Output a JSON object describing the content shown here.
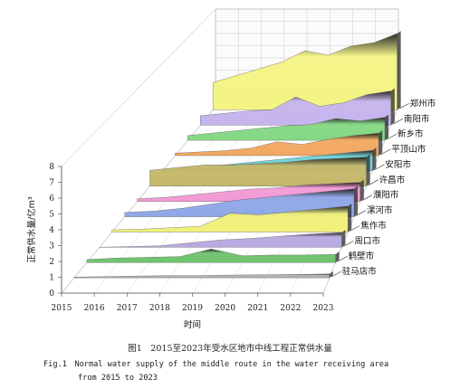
{
  "chart_data": {
    "type": "area",
    "layout": "3d-waterfall",
    "title": "",
    "xlabel": "时间",
    "ylabel": "正常供水量/亿m³",
    "x": [
      2015,
      2016,
      2017,
      2018,
      2019,
      2020,
      2021,
      2022,
      2023
    ],
    "x_tick_labels": [
      "2015",
      "2016",
      "2017",
      "2018",
      "2019",
      "2020",
      "2021",
      "2022",
      "2023"
    ],
    "ylim": [
      0,
      8
    ],
    "y_ticks": [
      0,
      1,
      2,
      3,
      4,
      5,
      6,
      7,
      8
    ],
    "y_tick_labels": [
      "0",
      "1",
      "2",
      "3",
      "4",
      "5",
      "6",
      "7",
      "8"
    ],
    "grid": true,
    "series": [
      {
        "name": "驻马店市",
        "color": "#b0b0b0",
        "values": [
          0.05,
          0.08,
          0.12,
          0.15,
          0.15,
          0.18,
          0.2,
          0.22,
          0.25
        ]
      },
      {
        "name": "鹤壁市",
        "color": "#6ec46e",
        "values": [
          0.2,
          0.3,
          0.35,
          0.4,
          0.9,
          0.45,
          0.5,
          0.5,
          0.55
        ]
      },
      {
        "name": "周口市",
        "color": "#b8a8e0",
        "values": [
          0.0,
          0.05,
          0.1,
          0.3,
          0.5,
          0.6,
          0.75,
          0.9,
          1.0
        ]
      },
      {
        "name": "焦作市",
        "color": "#f0f07a",
        "values": [
          0.15,
          0.2,
          0.3,
          0.4,
          1.3,
          1.2,
          1.4,
          1.6,
          1.8
        ]
      },
      {
        "name": "漯河市",
        "color": "#8fa8e8",
        "values": [
          0.3,
          0.4,
          0.6,
          0.9,
          1.2,
          1.4,
          1.6,
          1.8,
          2.0
        ]
      },
      {
        "name": "濮阳市",
        "color": "#f29ad6",
        "values": [
          0.2,
          0.3,
          0.5,
          0.7,
          0.9,
          1.0,
          1.2,
          1.3,
          1.4
        ]
      },
      {
        "name": "许昌市",
        "color": "#c4b86a",
        "values": [
          1.2,
          1.4,
          1.6,
          1.6,
          1.7,
          1.8,
          2.0,
          2.1,
          2.2
        ]
      },
      {
        "name": "安阳市",
        "color": "#6fd0d8",
        "values": [
          0.1,
          0.2,
          0.4,
          0.6,
          0.8,
          1.0,
          1.2,
          1.4,
          1.6
        ]
      },
      {
        "name": "平顶山市",
        "color": "#f2a862",
        "values": [
          0.2,
          0.3,
          0.4,
          0.6,
          1.1,
          0.9,
          1.3,
          1.6,
          1.8
        ]
      },
      {
        "name": "新乡市",
        "color": "#84d884",
        "values": [
          0.4,
          0.6,
          0.8,
          1.0,
          1.2,
          1.3,
          1.8,
          1.6,
          1.9
        ]
      },
      {
        "name": "南阳市",
        "color": "#c6b4ee",
        "values": [
          0.8,
          1.0,
          1.2,
          1.3,
          2.4,
          1.6,
          1.9,
          2.6,
          2.9
        ]
      },
      {
        "name": "郑州市",
        "color": "#f4f484",
        "values": [
          2.4,
          3.0,
          3.6,
          4.2,
          5.2,
          4.8,
          5.6,
          5.9,
          6.7
        ]
      }
    ]
  },
  "caption": {
    "cn": "图1　2015至2023年受水区地市中线工程正常供水量",
    "en_line1": "Fig.1　Normal water supply of the middle route in the water receiving area",
    "en_line2": "from 2015 to 2023"
  }
}
